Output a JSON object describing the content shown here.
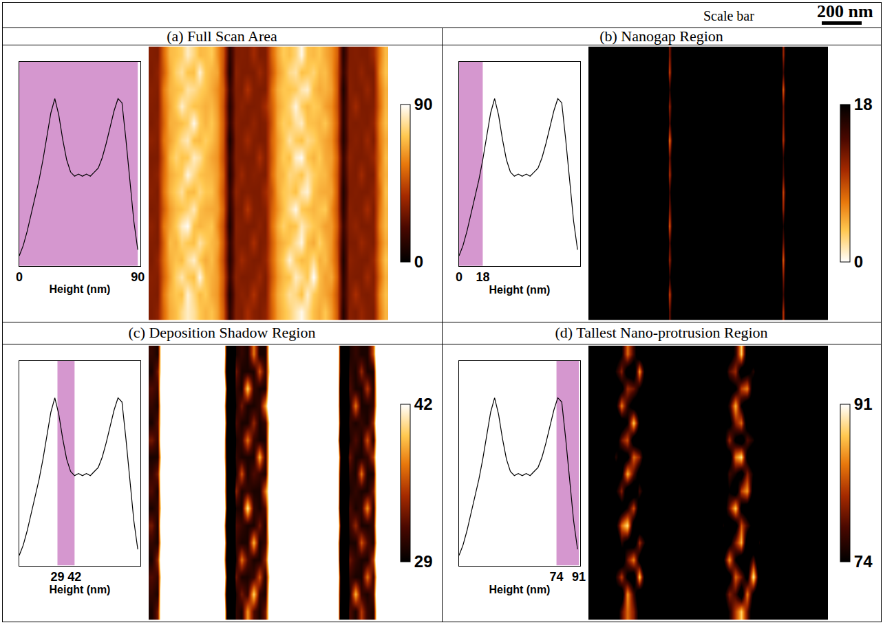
{
  "scale_bar": {
    "label": "Scale bar",
    "length": "200 nm"
  },
  "height_map": [
    [
      30,
      33,
      52,
      66,
      70,
      78,
      84,
      80,
      72,
      68,
      71,
      64,
      50,
      12,
      31,
      30,
      38,
      32,
      30,
      33,
      50,
      64,
      70,
      75,
      82,
      88,
      79,
      70,
      66,
      72,
      63,
      48,
      9,
      32,
      30,
      35,
      31,
      30,
      55,
      68
    ],
    [
      31,
      30,
      55,
      68,
      72,
      70,
      86,
      77,
      69,
      73,
      66,
      62,
      47,
      8,
      30,
      33,
      31,
      40,
      31,
      30,
      52,
      66,
      72,
      80,
      77,
      70,
      85,
      73,
      68,
      65,
      60,
      46,
      14,
      30,
      39,
      31,
      30,
      32,
      58,
      70
    ],
    [
      32,
      31,
      50,
      64,
      75,
      82,
      73,
      70,
      88,
      71,
      67,
      63,
      49,
      15,
      33,
      30,
      30,
      31,
      36,
      30,
      48,
      62,
      69,
      71,
      84,
      79,
      72,
      90,
      70,
      64,
      66,
      50,
      11,
      31,
      30,
      30,
      37,
      31,
      52,
      67
    ],
    [
      30,
      34,
      53,
      67,
      71,
      69,
      79,
      85,
      72,
      66,
      70,
      61,
      45,
      10,
      30,
      37,
      32,
      30,
      30,
      34,
      51,
      65,
      73,
      86,
      74,
      69,
      71,
      78,
      67,
      70,
      61,
      47,
      7,
      33,
      31,
      30,
      30,
      35,
      56,
      71
    ],
    [
      31,
      30,
      51,
      70,
      68,
      76,
      72,
      70,
      81,
      74,
      69,
      65,
      48,
      13,
      31,
      30,
      30,
      39,
      30,
      31,
      49,
      63,
      68,
      72,
      80,
      87,
      70,
      66,
      75,
      68,
      62,
      45,
      12,
      30,
      30,
      36,
      32,
      30,
      53,
      66
    ],
    [
      33,
      30,
      56,
      65,
      73,
      84,
      89,
      71,
      68,
      70,
      72,
      60,
      46,
      7,
      32,
      31,
      30,
      30,
      33,
      30,
      53,
      67,
      75,
      70,
      71,
      83,
      77,
      72,
      69,
      64,
      63,
      49,
      16,
      31,
      34,
      30,
      30,
      31,
      57,
      69
    ],
    [
      30,
      31,
      49,
      63,
      69,
      71,
      75,
      83,
      70,
      67,
      66,
      64,
      51,
      11,
      30,
      30,
      41,
      31,
      30,
      32,
      50,
      61,
      70,
      79,
      88,
      72,
      70,
      68,
      71,
      73,
      60,
      46,
      10,
      32,
      30,
      31,
      38,
      30,
      54,
      68
    ],
    [
      32,
      30,
      54,
      68,
      74,
      80,
      70,
      69,
      77,
      72,
      71,
      62,
      47,
      14,
      34,
      30,
      31,
      30,
      30,
      37,
      47,
      64,
      72,
      74,
      70,
      82,
      86,
      71,
      67,
      66,
      65,
      48,
      8,
      30,
      31,
      30,
      30,
      33,
      51,
      70
    ],
    [
      31,
      33,
      52,
      66,
      70,
      73,
      87,
      78,
      71,
      69,
      68,
      63,
      50,
      9,
      30,
      36,
      30,
      32,
      31,
      30,
      52,
      66,
      69,
      77,
      75,
      71,
      80,
      74,
      70,
      69,
      62,
      47,
      13,
      31,
      30,
      37,
      30,
      30,
      56,
      67
    ],
    [
      30,
      30,
      50,
      69,
      76,
      71,
      72,
      84,
      80,
      70,
      65,
      61,
      46,
      12,
      31,
      30,
      30,
      30,
      39,
      31,
      49,
      65,
      73,
      70,
      85,
      89,
      72,
      68,
      73,
      66,
      64,
      50,
      15,
      33,
      30,
      30,
      31,
      35,
      53,
      69
    ],
    [
      33,
      31,
      55,
      64,
      71,
      79,
      83,
      70,
      69,
      74,
      70,
      63,
      48,
      6,
      30,
      31,
      37,
      31,
      30,
      30,
      51,
      63,
      71,
      81,
      73,
      70,
      78,
      75,
      69,
      65,
      61,
      45,
      9,
      30,
      32,
      30,
      36,
      30,
      55,
      66
    ],
    [
      30,
      32,
      51,
      67,
      68,
      70,
      74,
      88,
      73,
      68,
      72,
      64,
      49,
      13,
      32,
      30,
      30,
      34,
      30,
      31,
      48,
      66,
      74,
      72,
      80,
      84,
      71,
      70,
      68,
      72,
      63,
      49,
      11,
      31,
      30,
      31,
      30,
      34,
      57,
      70
    ],
    [
      31,
      30,
      53,
      65,
      73,
      85,
      76,
      71,
      70,
      67,
      69,
      62,
      47,
      10,
      30,
      33,
      30,
      30,
      31,
      38,
      50,
      64,
      70,
      76,
      87,
      74,
      69,
      73,
      71,
      64,
      60,
      46,
      12,
      30,
      37,
      30,
      30,
      31,
      52,
      68
    ],
    [
      32,
      31,
      56,
      68,
      70,
      72,
      81,
      79,
      74,
      71,
      66,
      60,
      50,
      15,
      31,
      30,
      40,
      31,
      30,
      30,
      53,
      67,
      72,
      71,
      73,
      82,
      85,
      70,
      66,
      68,
      64,
      48,
      7,
      32,
      30,
      30,
      35,
      30,
      54,
      67
    ],
    [
      30,
      33,
      49,
      66,
      75,
      80,
      71,
      70,
      86,
      72,
      68,
      65,
      46,
      8,
      33,
      30,
      30,
      30,
      36,
      31,
      47,
      62,
      69,
      78,
      81,
      70,
      72,
      76,
      69,
      70,
      62,
      47,
      14,
      31,
      30,
      34,
      30,
      30,
      58,
      71
    ],
    [
      31,
      30,
      52,
      69,
      71,
      74,
      84,
      77,
      69,
      70,
      73,
      61,
      48,
      11,
      30,
      31,
      30,
      37,
      30,
      30,
      51,
      65,
      73,
      70,
      76,
      88,
      71,
      69,
      72,
      66,
      61,
      50,
      10,
      30,
      31,
      30,
      30,
      36,
      55,
      69
    ]
  ],
  "chart_data": [
    {
      "title": "(a) Full Scan Area",
      "histogram": {
        "type": "line",
        "color": "#000000",
        "x": [
          0,
          3,
          6,
          9,
          12,
          15,
          18,
          21,
          24,
          27,
          30,
          33,
          36,
          39,
          42,
          45,
          48,
          51,
          54,
          57,
          60,
          63,
          66,
          69,
          72,
          75,
          78,
          81,
          84,
          87,
          90
        ],
        "values": [
          5,
          10,
          17,
          25,
          33,
          42,
          52,
          63,
          75,
          82,
          74,
          62,
          52,
          46,
          44,
          45,
          44,
          45,
          44,
          46,
          48,
          53,
          60,
          68,
          76,
          82,
          80,
          62,
          42,
          22,
          8
        ],
        "xlim": [
          0,
          92
        ],
        "ylim": [
          0,
          100
        ],
        "xticks": [
          0,
          90
        ],
        "tick_labels": "x",
        "xlabel": "Height (nm)",
        "highlight": [
          0,
          90
        ]
      },
      "heatmap": {
        "type": "heatmap",
        "zlim": [
          0,
          90
        ],
        "zticks": [
          0,
          90
        ],
        "tick_labels": false
      }
    },
    {
      "title": "(b) Nanogap Region",
      "histogram": {
        "type": "line",
        "color": "#000000",
        "x": [
          0,
          3,
          6,
          9,
          12,
          15,
          18,
          21,
          24,
          27,
          30,
          33,
          36,
          39,
          42,
          45,
          48,
          51,
          54,
          57,
          60,
          63,
          66,
          69,
          72,
          75,
          78,
          81,
          84,
          87,
          90
        ],
        "values": [
          5,
          10,
          17,
          25,
          33,
          42,
          52,
          63,
          75,
          82,
          74,
          62,
          52,
          46,
          44,
          45,
          44,
          45,
          44,
          46,
          48,
          53,
          60,
          68,
          76,
          82,
          80,
          62,
          42,
          22,
          8
        ],
        "xlim": [
          0,
          92
        ],
        "ylim": [
          0,
          100
        ],
        "xticks": [
          0,
          18
        ],
        "tick_labels": "x",
        "xlabel": "Height (nm)",
        "highlight": [
          0,
          18
        ]
      },
      "heatmap": {
        "type": "heatmap",
        "zlim": [
          18,
          0
        ],
        "zticks": [
          0,
          18
        ],
        "tick_labels": false
      }
    },
    {
      "title": "(c) Deposition Shadow Region",
      "histogram": {
        "type": "line",
        "color": "#000000",
        "x": [
          0,
          3,
          6,
          9,
          12,
          15,
          18,
          21,
          24,
          27,
          30,
          33,
          36,
          39,
          42,
          45,
          48,
          51,
          54,
          57,
          60,
          63,
          66,
          69,
          72,
          75,
          78,
          81,
          84,
          87,
          90
        ],
        "values": [
          5,
          10,
          17,
          25,
          33,
          42,
          52,
          63,
          75,
          82,
          74,
          62,
          52,
          46,
          44,
          45,
          44,
          45,
          44,
          46,
          48,
          53,
          60,
          68,
          76,
          82,
          80,
          62,
          42,
          22,
          8
        ],
        "xlim": [
          0,
          92
        ],
        "ylim": [
          0,
          100
        ],
        "xticks": [
          29,
          42
        ],
        "tick_labels": "x",
        "xlabel": "Height (nm)",
        "highlight": [
          29,
          42
        ]
      },
      "heatmap": {
        "type": "heatmap",
        "zlim": [
          29,
          42
        ],
        "zticks": [
          29,
          42
        ],
        "tick_labels": false
      }
    },
    {
      "title": "(d) Tallest Nano-protrusion Region",
      "histogram": {
        "type": "line",
        "color": "#000000",
        "x": [
          0,
          3,
          6,
          9,
          12,
          15,
          18,
          21,
          24,
          27,
          30,
          33,
          36,
          39,
          42,
          45,
          48,
          51,
          54,
          57,
          60,
          63,
          66,
          69,
          72,
          75,
          78,
          81,
          84,
          87,
          90
        ],
        "values": [
          5,
          10,
          17,
          25,
          33,
          42,
          52,
          63,
          75,
          82,
          74,
          62,
          52,
          46,
          44,
          45,
          44,
          45,
          44,
          46,
          48,
          53,
          60,
          68,
          76,
          82,
          80,
          62,
          42,
          22,
          8
        ],
        "xlim": [
          0,
          92
        ],
        "ylim": [
          0,
          100
        ],
        "xticks": [
          74,
          91
        ],
        "tick_labels": "x",
        "xlabel": "Height (nm)",
        "highlight": [
          74,
          91
        ]
      },
      "heatmap": {
        "type": "heatmap",
        "zlim": [
          74,
          91
        ],
        "zticks": [
          74,
          91
        ],
        "tick_labels": false
      }
    }
  ]
}
